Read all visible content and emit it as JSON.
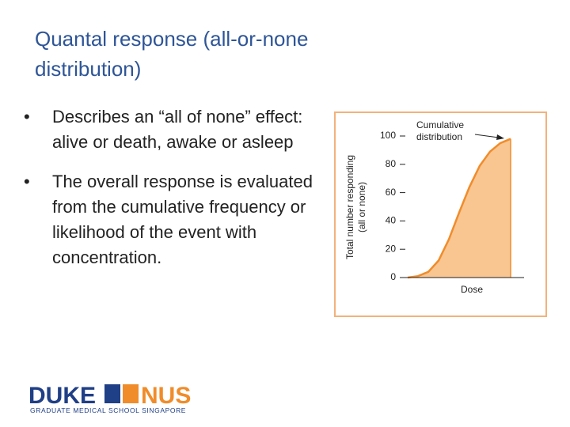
{
  "slide": {
    "title": "Quantal response (all-or-none distribution)",
    "bullets": [
      "Describes an “all of none” effect: alive or death, awake or asleep",
      "The overall response is evaluated from the cumulative frequency or likelihood of the event with concentration."
    ]
  },
  "chart_data": {
    "type": "area",
    "y_label": [
      "Total number responding",
      "(all or none)"
    ],
    "x_label": "Dose",
    "annotation": [
      "Cumulative",
      "distribution"
    ],
    "categories": [
      null,
      null,
      null,
      null,
      null,
      null,
      null,
      null,
      null,
      null,
      null
    ],
    "values": [
      0,
      1,
      4,
      12,
      27,
      46,
      64,
      79,
      89,
      95,
      98
    ],
    "color": "#f08c2a",
    "fill": "#f9c591",
    "ylim": [
      0,
      100
    ],
    "yticks": [
      0,
      20,
      40,
      60,
      80,
      100
    ]
  },
  "logo": {
    "left": "DUKE",
    "right": "NUS",
    "subtitle": "GRADUATE MEDICAL SCHOOL SINGAPORE"
  }
}
